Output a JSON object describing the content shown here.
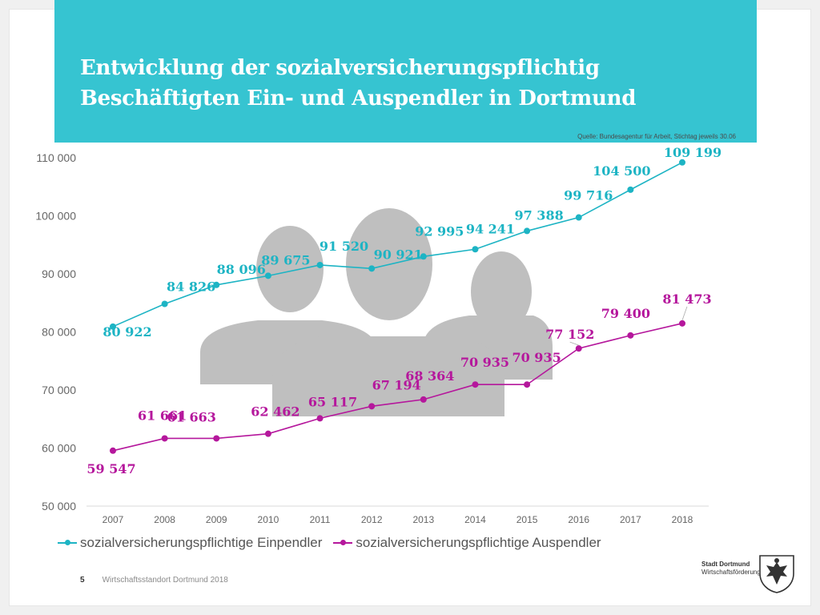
{
  "header": {
    "title_line1": "Entwicklung der sozialversicherungspflichtig",
    "title_line2": "Beschäftigten Ein- und Auspendler in Dortmund",
    "source": "Quelle: Bundesagentur für Arbeit, Stichtag jeweils 30.06"
  },
  "colors": {
    "header_bg": "#36c4d1",
    "einpendler": "#1db4c4",
    "auspendler": "#b5179c",
    "silhouette": "#bfbfbf"
  },
  "chart_data": {
    "type": "line",
    "title": "Entwicklung der sozialversicherungspflichtig Beschäftigten Ein- und Auspendler in Dortmund",
    "categories": [
      "2007",
      "2008",
      "2009",
      "2010",
      "2011",
      "2012",
      "2013",
      "2014",
      "2015",
      "2016",
      "2017",
      "2018"
    ],
    "y_ticks": [
      "110 000",
      "100 000",
      "90 000",
      "80 000",
      "70 000",
      "60 000",
      "50 000"
    ],
    "ylim": [
      50000,
      110000
    ],
    "xlabel": "",
    "ylabel": "",
    "grid": false,
    "legend_position": "bottom",
    "series": [
      {
        "name": "sozialversicherungspflichtige Einpendler",
        "values": [
          80922,
          84826,
          88096,
          89675,
          91520,
          90921,
          92995,
          94241,
          97388,
          99716,
          104500,
          109199
        ],
        "labels": [
          "80 922",
          "84 826",
          "88 096",
          "89 675",
          "91 520",
          "90 921",
          "92 995",
          "94 241",
          "97 388",
          "99 716",
          "104 500",
          "109 199"
        ]
      },
      {
        "name": "sozialversicherungspflichtige Auspendler",
        "values": [
          59547,
          61661,
          61663,
          62462,
          65117,
          67194,
          68364,
          70935,
          70935,
          77152,
          79400,
          81473
        ],
        "labels": [
          "59 547",
          "61 661",
          "61 663",
          "62 462",
          "65 117",
          "67 194",
          "68 364",
          "70 935",
          "70 935",
          "77 152",
          "79 400",
          "81 473"
        ]
      }
    ]
  },
  "footer": {
    "page_number": "5",
    "text": "Wirtschaftsstandort Dortmund 2018",
    "brand_city": "Stadt Dortmund",
    "brand_unit": "Wirtschaftsförderung"
  }
}
